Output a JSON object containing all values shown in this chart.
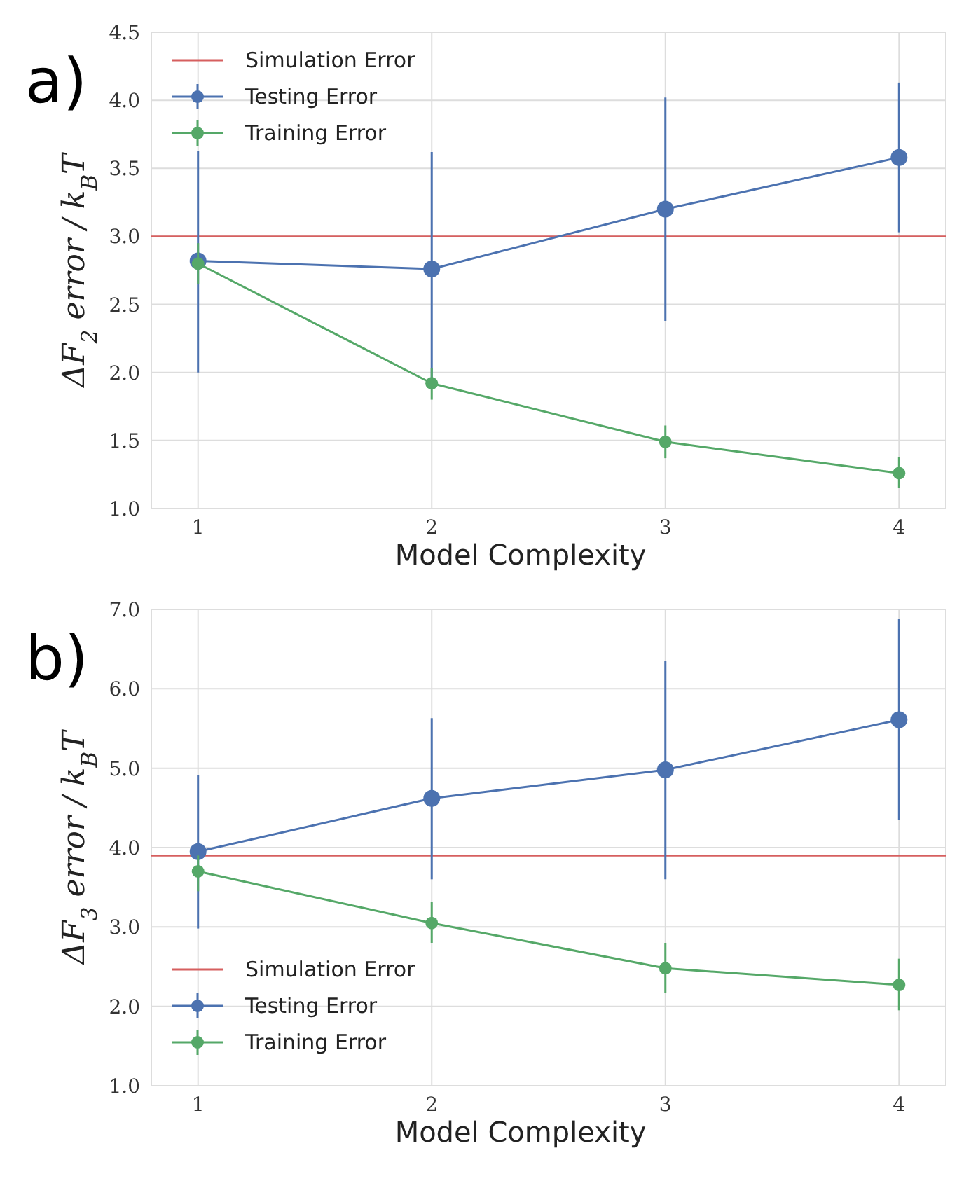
{
  "chart_data": [
    {
      "type": "line",
      "title": "a)",
      "xlabel": "Model Complexity",
      "ylabel": "ΔF$_{2}$ error / k$_{B}$T",
      "x": [
        1,
        2,
        3,
        4
      ],
      "xlim": [
        0.8,
        4.2
      ],
      "xticks": [
        1,
        2,
        3,
        4
      ],
      "ylim": [
        1,
        4.5
      ],
      "yticks": [
        {
          "value": 1,
          "label": "1.0"
        },
        {
          "value": 1.5,
          "label": "1.5"
        },
        {
          "value": 2,
          "label": "2.0"
        },
        {
          "value": 2.5,
          "label": "2.5"
        },
        {
          "value": 3,
          "label": "3.0"
        },
        {
          "value": 3.5,
          "label": "3.5"
        },
        {
          "value": 4,
          "label": "4.0"
        },
        {
          "value": 4.5,
          "label": "4.5"
        }
      ],
      "grid": true,
      "legend": "top left",
      "marker": "circle",
      "line_style": "solid",
      "ref_lines": [
        {
          "axis": "y",
          "value": 3.0,
          "label": "Simulation Error",
          "color": "#d65f5f"
        }
      ],
      "series": [
        {
          "name": "Testing Error",
          "color": "#4c72b0",
          "values": [
            2.82,
            2.76,
            3.2,
            3.58
          ],
          "errors": [
            [
              2.0,
              3.63
            ],
            [
              1.9,
              3.62
            ],
            [
              2.38,
              4.02
            ],
            [
              3.03,
              4.13
            ]
          ]
        },
        {
          "name": "Training Error",
          "color": "#55a868",
          "values": [
            2.8,
            1.92,
            1.49,
            1.26
          ],
          "errors": [
            [
              2.65,
              2.95
            ],
            [
              1.8,
              2.03
            ],
            [
              1.37,
              1.61
            ],
            [
              1.15,
              1.38
            ]
          ]
        }
      ]
    },
    {
      "type": "line",
      "title": "b)",
      "xlabel": "Model Complexity",
      "ylabel": "ΔF$_{3}$ error / k$_{B}$T",
      "x": [
        1,
        2,
        3,
        4
      ],
      "xlim": [
        0.8,
        4.2
      ],
      "xticks": [
        1,
        2,
        3,
        4
      ],
      "ylim": [
        1,
        7
      ],
      "yticks": [
        {
          "value": 1,
          "label": "1.0"
        },
        {
          "value": 2,
          "label": "2.0"
        },
        {
          "value": 3,
          "label": "3.0"
        },
        {
          "value": 4,
          "label": "4.0"
        },
        {
          "value": 5,
          "label": "5.0"
        },
        {
          "value": 6,
          "label": "6.0"
        },
        {
          "value": 7,
          "label": "7.0"
        }
      ],
      "grid": true,
      "legend": "bottom left",
      "marker": "circle",
      "line_style": "solid",
      "ref_lines": [
        {
          "axis": "y",
          "value": 3.9,
          "label": "Simulation Error",
          "color": "#d65f5f"
        }
      ],
      "series": [
        {
          "name": "Testing Error",
          "color": "#4c72b0",
          "values": [
            3.95,
            4.62,
            4.98,
            5.61
          ],
          "errors": [
            [
              2.98,
              4.91
            ],
            [
              3.6,
              5.63
            ],
            [
              3.6,
              6.35
            ],
            [
              4.35,
              6.88
            ]
          ]
        },
        {
          "name": "Training Error",
          "color": "#55a868",
          "values": [
            3.7,
            3.05,
            2.48,
            2.27
          ],
          "errors": [
            [
              3.45,
              3.9
            ],
            [
              2.8,
              3.32
            ],
            [
              2.17,
              2.8
            ],
            [
              1.95,
              2.6
            ]
          ]
        }
      ]
    }
  ]
}
